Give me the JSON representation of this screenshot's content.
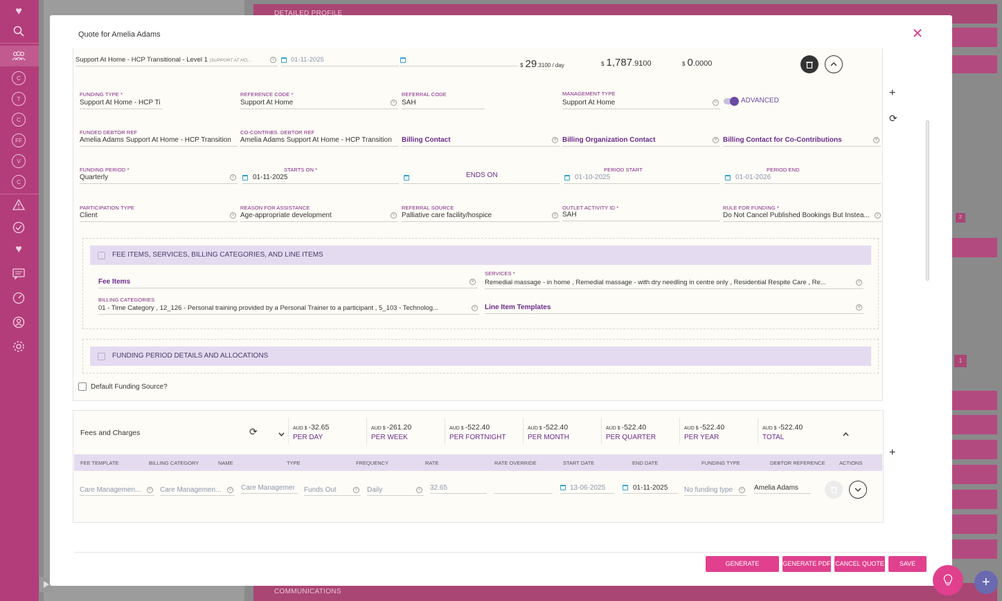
{
  "modal": {
    "title": "Quote for Amelia Adams"
  },
  "funding_row": {
    "name": "Support At Home - HCP Transitional - Level 1",
    "name_sub": "(SUPPORT AT HO...",
    "start_date": "01-11-2025",
    "day_rate_cur": "$",
    "day_rate_big": "29",
    "day_rate_small": ".3100 / day",
    "total_cur": "$",
    "total_big": "1,787",
    "total_small": ".9100",
    "co_cur": "$",
    "co_big": "0",
    "co_small": ".0000"
  },
  "fields": {
    "funding_type_label": "FUNDING TYPE *",
    "funding_type_value": "Support At Home - HCP Ti",
    "reference_code_label": "REFERENCE CODE *",
    "reference_code_value": "Support At Home",
    "referral_code_label": "REFERRAL CODE",
    "referral_code_value": "SAH",
    "management_type_label": "MANAGEMENT TYPE",
    "management_type_value": "Support At Home",
    "advanced_label": "ADVANCED",
    "funded_debtor_label": "FUNDED DEBTOR REF",
    "funded_debtor_value": "Amelia Adams Support At Home - HCP Transition",
    "cocontrib_label": "CO-CONTRIBS. DEBTOR REF",
    "cocontrib_value": "Amelia Adams Support At Home - HCP Transition",
    "billing_contact": "Billing Contact",
    "billing_org_contact": "Billing Organization Contact",
    "billing_cocontrib": "Billing Contact for Co-Contributions",
    "funding_period_label": "FUNDING PERIOD *",
    "funding_period_value": "Quarterly",
    "starts_on_label": "STARTS ON *",
    "starts_on_value": "01-11-2025",
    "ends_on_label": "ENDS ON",
    "period_start_label": "PERIOD START",
    "period_start_value": "01-10-2025",
    "period_end_label": "PERIOD END",
    "period_end_value": "01-01-2026",
    "participation_label": "PARTICIPATION TYPE",
    "participation_value": "Client",
    "reason_label": "REASON FOR ASSISTANCE",
    "reason_value": "Age-appropriate development",
    "referral_source_label": "REFERRAL SOURCE",
    "referral_source_value": "Palliative care facility/hospice",
    "outlet_label": "OUTLET ACTIVITY ID *",
    "outlet_value": "SAH",
    "rule_label": "RULE FOR FUNDING *",
    "rule_value": "Do Not Cancel Published Bookings But Instea..."
  },
  "fee_section": {
    "title": "FEE ITEMS, SERVICES, BILLING CATEGORIES, AND LINE ITEMS",
    "fee_items": "Fee Items",
    "services_label": "SERVICES *",
    "services_value": "Remedial massage - in home , Remedial massage - with dry needling in centre only , Residential Respite Care , Re...",
    "billing_categories_label": "BILLING CATEGORIES",
    "billing_categories_value": "01 - Time Category , 12_126 - Personal training provided by a Personal Trainer to a participant , 5_103 - Technolog...",
    "line_item_templates": "Line Item Templates"
  },
  "funding_section": {
    "title": "FUNDING PERIOD DETAILS AND ALLOCATIONS"
  },
  "default_funding_label": "Default Funding Source?",
  "fees": {
    "title": "Fees and Charges",
    "summaries": [
      {
        "cur": "AUD $",
        "amount": "-32.65",
        "label": "PER DAY"
      },
      {
        "cur": "AUD $",
        "amount": "-261.20",
        "label": "PER WEEK"
      },
      {
        "cur": "AUD $",
        "amount": "-522.40",
        "label": "PER FORTNIGHT"
      },
      {
        "cur": "AUD $",
        "amount": "-522.40",
        "label": "PER MONTH"
      },
      {
        "cur": "AUD $",
        "amount": "-522.40",
        "label": "PER QUARTER"
      },
      {
        "cur": "AUD $",
        "amount": "-522.40",
        "label": "PER YEAR"
      },
      {
        "cur": "AUD $",
        "amount": "-522.40",
        "label": "TOTAL"
      }
    ],
    "columns": [
      "FEE TEMPLATE",
      "BILLING CATEGORY",
      "NAME",
      "TYPE",
      "FREQUENCY",
      "RATE",
      "RATE OVERRIDE",
      "START DATE",
      "END DATE",
      "FUNDING TYPE",
      "DEBTOR REFERENCE",
      "ACTIONS"
    ],
    "row": {
      "fee_template": "Care Managemen...",
      "billing_category": "Care Managemen...",
      "name": "Care Managemer",
      "type": "Funds Out",
      "frequency": "Daily",
      "rate": "32.65",
      "rate_override": "",
      "start_date": "13-06-2025",
      "end_date": "01-11-2025",
      "funding_type": "No funding type",
      "debtor_reference": "Amelia Adams"
    }
  },
  "buttons": {
    "generate_agreement": "GENERATE AGREEMENT",
    "generate_pdf": "GENERATE PDF",
    "cancel_quote": "CANCEL QUOTE",
    "save": "SAVE"
  },
  "background": {
    "top_bar": "DETAILED PROFILE",
    "bottom_bar": "COMMUNICATIONS",
    "page_num_1": "2",
    "page_num_2": "1"
  },
  "sidebar": {
    "circles": [
      "C",
      "T",
      "C",
      "FF",
      "V",
      "C"
    ]
  },
  "colors": {
    "brand_pink": "#e0408e",
    "sidebar": "#b33d7a",
    "label_purple": "#7d2380",
    "section_head": "#e4dbf0"
  }
}
